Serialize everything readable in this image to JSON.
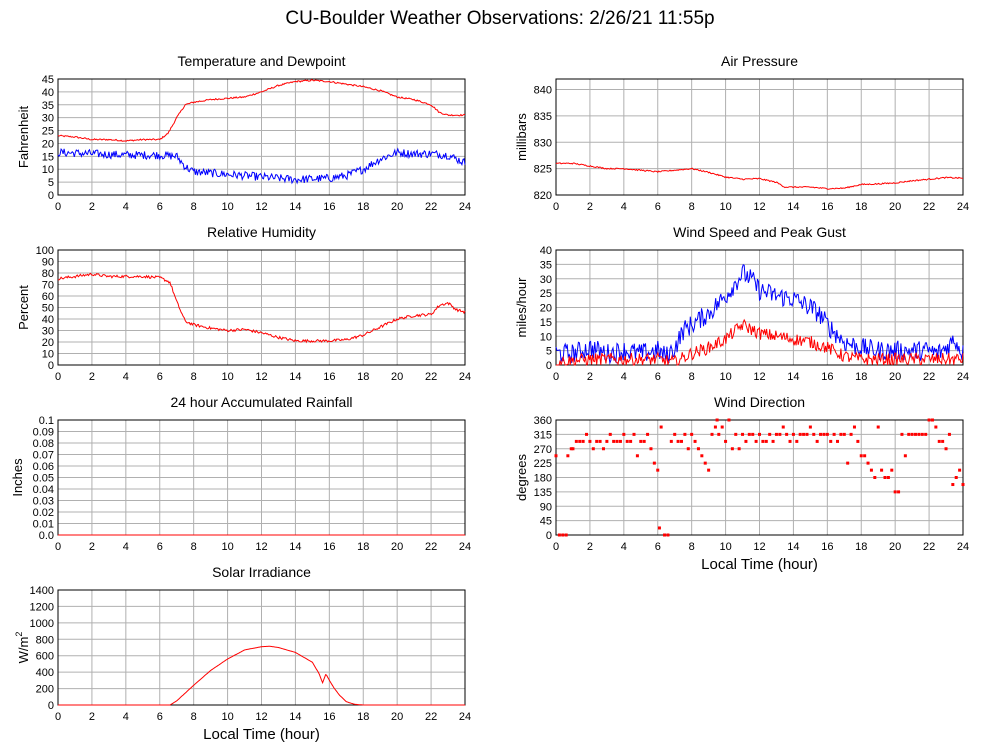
{
  "page": {
    "title": "CU-Boulder Weather Observations: 2/26/21 11:55p"
  },
  "chart_data": [
    {
      "id": "temp",
      "type": "line",
      "title": "Temperature and Dewpoint",
      "xlabel": "",
      "ylabel": "Fahrenheit",
      "xlim": [
        0,
        24
      ],
      "ylim": [
        0,
        45
      ],
      "xticks": [
        0,
        2,
        4,
        6,
        8,
        10,
        12,
        14,
        16,
        18,
        20,
        22,
        24
      ],
      "yticks": [
        0,
        5,
        10,
        15,
        20,
        25,
        30,
        35,
        40,
        45
      ],
      "grid": true,
      "series": [
        {
          "color": "#ff0000",
          "noise": 0.3,
          "x": [
            0,
            1,
            2,
            3,
            4,
            5,
            6,
            6.5,
            7,
            7.5,
            8,
            9,
            10,
            11,
            12,
            13,
            14,
            15,
            16,
            17,
            18,
            19,
            20,
            21,
            22,
            22.5,
            23,
            24
          ],
          "y": [
            23,
            22.5,
            21.5,
            21.5,
            21,
            21.5,
            21.5,
            24,
            30,
            35,
            36,
            37,
            37.5,
            38,
            40,
            42.5,
            44,
            44.5,
            44,
            43,
            42,
            40.5,
            38,
            37,
            35,
            32,
            31,
            31
          ]
        },
        {
          "color": "#0000ff",
          "noise": 1.6,
          "x": [
            0,
            2,
            4,
            6,
            7,
            7.5,
            8,
            10,
            12,
            14,
            16,
            17,
            18,
            19,
            20,
            21,
            22,
            23,
            24
          ],
          "y": [
            16.5,
            16,
            15.5,
            15.5,
            15,
            11,
            9,
            8,
            7,
            6,
            6.5,
            7.5,
            10,
            14,
            16.5,
            16,
            16,
            15.5,
            12.5
          ]
        }
      ]
    },
    {
      "id": "humidity",
      "type": "line",
      "title": "Relative Humidity",
      "xlabel": "",
      "ylabel": "Percent",
      "xlim": [
        0,
        24
      ],
      "ylim": [
        0,
        100
      ],
      "xticks": [
        0,
        2,
        4,
        6,
        8,
        10,
        12,
        14,
        16,
        18,
        20,
        22,
        24
      ],
      "yticks": [
        0,
        10,
        20,
        30,
        40,
        50,
        60,
        70,
        80,
        90,
        100
      ],
      "grid": true,
      "series": [
        {
          "color": "#ff0000",
          "noise": 1.2,
          "x": [
            0,
            1,
            2,
            3,
            4,
            5,
            6,
            6.6,
            7,
            7.5,
            8,
            9,
            10,
            11,
            12,
            13,
            14,
            15,
            16,
            17,
            18,
            19,
            20,
            21,
            22,
            22.5,
            23,
            23.5,
            24
          ],
          "y": [
            75,
            77,
            79,
            77,
            77,
            77,
            76,
            72,
            55,
            38,
            35,
            32,
            30,
            31,
            28,
            24,
            21,
            21,
            21,
            22,
            26,
            33,
            40,
            43,
            44,
            52,
            54,
            48,
            46
          ]
        }
      ]
    },
    {
      "id": "rain",
      "type": "line",
      "title": "24 hour Accumulated Rainfall",
      "xlabel": "",
      "ylabel": "Inches",
      "xlim": [
        0,
        24
      ],
      "ylim": [
        0,
        0.1
      ],
      "xticks": [
        0,
        2,
        4,
        6,
        8,
        10,
        12,
        14,
        16,
        18,
        20,
        22,
        24
      ],
      "yticks": [
        0.0,
        0.01,
        0.02,
        0.03,
        0.04,
        0.05,
        0.06,
        0.07,
        0.08,
        0.09,
        0.1
      ],
      "ytick_labels": [
        "0.0",
        "0.01",
        "0.02",
        "0.03",
        "0.04",
        "0.05",
        "0.06",
        "0.07",
        "0.08",
        "0.09",
        "0.1"
      ],
      "grid": true,
      "series": [
        {
          "color": "#ff0000",
          "noise": 0,
          "x": [
            0,
            24
          ],
          "y": [
            0,
            0
          ]
        }
      ]
    },
    {
      "id": "solar",
      "type": "line",
      "title": "Solar Irradiance",
      "xlabel": "Local Time (hour)",
      "ylabel": "W/m",
      "ylabel_sup": "2",
      "xlim": [
        0,
        24
      ],
      "ylim": [
        0,
        1400
      ],
      "xticks": [
        0,
        2,
        4,
        6,
        8,
        10,
        12,
        14,
        16,
        18,
        20,
        22,
        24
      ],
      "yticks": [
        0,
        200,
        400,
        600,
        800,
        1000,
        1200,
        1400
      ],
      "grid": true,
      "series": [
        {
          "color": "#ff0000",
          "noise": 0,
          "x": [
            0,
            6.6,
            7,
            8,
            9,
            10,
            11,
            12,
            12.5,
            13,
            14,
            15,
            15.4,
            15.6,
            15.8,
            16,
            16.3,
            16.6,
            17,
            17.5,
            18,
            24
          ],
          "y": [
            0,
            0,
            50,
            240,
            420,
            560,
            670,
            710,
            715,
            700,
            640,
            520,
            380,
            270,
            380,
            300,
            200,
            120,
            40,
            8,
            0,
            0
          ]
        }
      ]
    },
    {
      "id": "pressure",
      "type": "line",
      "title": "Air Pressure",
      "xlabel": "",
      "ylabel": "millibars",
      "xlim": [
        0,
        24
      ],
      "ylim": [
        820,
        842
      ],
      "xticks": [
        0,
        2,
        4,
        6,
        8,
        10,
        12,
        14,
        16,
        18,
        20,
        22,
        24
      ],
      "yticks": [
        820,
        825,
        830,
        835,
        840
      ],
      "grid": true,
      "series": [
        {
          "color": "#ff0000",
          "noise": 0.12,
          "x": [
            0,
            1,
            2,
            3,
            4,
            5,
            6,
            7,
            8,
            9,
            10,
            11,
            12,
            13,
            13.5,
            14,
            15,
            16,
            17,
            18,
            19,
            20,
            21,
            22,
            23,
            24
          ],
          "y": [
            826,
            826,
            825.5,
            825,
            825,
            824.7,
            824.4,
            824.7,
            825,
            824.3,
            823.4,
            823,
            823.1,
            822.4,
            821.5,
            821.5,
            821.5,
            821.2,
            821.3,
            822,
            822.1,
            822.3,
            822.7,
            823,
            823.3,
            823.2
          ]
        }
      ]
    },
    {
      "id": "wind",
      "type": "line",
      "title": "Wind Speed and Peak Gust",
      "xlabel": "",
      "ylabel": "miles/hour",
      "xlim": [
        0,
        24
      ],
      "ylim": [
        0,
        40
      ],
      "xticks": [
        0,
        2,
        4,
        6,
        8,
        10,
        12,
        14,
        16,
        18,
        20,
        22,
        24
      ],
      "yticks": [
        0,
        5,
        10,
        15,
        20,
        25,
        30,
        35,
        40
      ],
      "grid": true,
      "series": [
        {
          "color": "#0000ff",
          "noise": 3.5,
          "x": [
            0,
            1,
            2,
            3,
            4,
            5,
            6,
            6.5,
            7,
            7.5,
            8,
            9,
            10,
            10.5,
            11,
            11.5,
            12,
            13,
            14,
            15,
            15.5,
            16,
            17,
            18,
            19,
            20,
            21,
            22,
            22.5,
            23,
            23.5,
            24
          ],
          "y": [
            4,
            4,
            6,
            4,
            5,
            4,
            5,
            3,
            6,
            12,
            14,
            18,
            24,
            28,
            32,
            30,
            26,
            24,
            23,
            20,
            18,
            14,
            8,
            6,
            5,
            5,
            5,
            5,
            4,
            6,
            9,
            4
          ]
        },
        {
          "color": "#ff0000",
          "noise": 2.2,
          "x": [
            0,
            2,
            4,
            6,
            7,
            8,
            9,
            10,
            11,
            12,
            13,
            14,
            15,
            16,
            17,
            18,
            20,
            22,
            23,
            24
          ],
          "y": [
            1,
            2,
            2,
            2,
            1,
            4,
            6,
            9,
            14,
            11,
            10,
            9,
            8,
            6,
            3,
            2,
            2,
            2,
            2,
            2
          ]
        }
      ]
    },
    {
      "id": "winddir",
      "type": "scatter",
      "title": "Wind Direction",
      "xlabel": "Local Time (hour)",
      "ylabel": "degrees",
      "xlim": [
        0,
        24
      ],
      "ylim": [
        0,
        360
      ],
      "xticks": [
        0,
        2,
        4,
        6,
        8,
        10,
        12,
        14,
        16,
        18,
        20,
        22,
        24
      ],
      "yticks": [
        0,
        45,
        90,
        135,
        180,
        225,
        270,
        315,
        360
      ],
      "grid": true,
      "series": [
        {
          "color": "#ff0000",
          "points": [
            [
              0,
              248
            ],
            [
              0.2,
              0
            ],
            [
              0.4,
              0
            ],
            [
              0.6,
              0
            ],
            [
              0.7,
              248
            ],
            [
              0.9,
              270
            ],
            [
              1.0,
              270
            ],
            [
              1.2,
              293
            ],
            [
              1.4,
              293
            ],
            [
              1.6,
              293
            ],
            [
              1.8,
              315
            ],
            [
              2.0,
              293
            ],
            [
              2.2,
              270
            ],
            [
              2.4,
              293
            ],
            [
              2.6,
              293
            ],
            [
              2.8,
              270
            ],
            [
              3.0,
              293
            ],
            [
              3.2,
              315
            ],
            [
              3.4,
              293
            ],
            [
              3.6,
              293
            ],
            [
              3.8,
              293
            ],
            [
              4.0,
              315
            ],
            [
              4.2,
              293
            ],
            [
              4.4,
              293
            ],
            [
              4.6,
              315
            ],
            [
              4.8,
              248
            ],
            [
              5.0,
              293
            ],
            [
              5.2,
              293
            ],
            [
              5.4,
              315
            ],
            [
              5.6,
              270
            ],
            [
              5.8,
              225
            ],
            [
              6.0,
              203
            ],
            [
              6.1,
              22
            ],
            [
              6.2,
              338
            ],
            [
              6.4,
              0
            ],
            [
              6.6,
              0
            ],
            [
              6.8,
              293
            ],
            [
              7.0,
              315
            ],
            [
              7.2,
              293
            ],
            [
              7.4,
              293
            ],
            [
              7.6,
              315
            ],
            [
              7.8,
              270
            ],
            [
              8.0,
              315
            ],
            [
              8.2,
              293
            ],
            [
              8.4,
              270
            ],
            [
              8.6,
              248
            ],
            [
              8.8,
              225
            ],
            [
              9.0,
              203
            ],
            [
              9.2,
              315
            ],
            [
              9.4,
              338
            ],
            [
              9.5,
              360
            ],
            [
              9.6,
              315
            ],
            [
              9.8,
              338
            ],
            [
              10.0,
              293
            ],
            [
              10.2,
              360
            ],
            [
              10.4,
              270
            ],
            [
              10.6,
              315
            ],
            [
              10.8,
              270
            ],
            [
              11.0,
              315
            ],
            [
              11.2,
              293
            ],
            [
              11.4,
              315
            ],
            [
              11.6,
              315
            ],
            [
              11.8,
              293
            ],
            [
              12.0,
              315
            ],
            [
              12.2,
              293
            ],
            [
              12.4,
              293
            ],
            [
              12.6,
              315
            ],
            [
              12.8,
              293
            ],
            [
              13.0,
              315
            ],
            [
              13.2,
              315
            ],
            [
              13.4,
              338
            ],
            [
              13.6,
              315
            ],
            [
              13.8,
              293
            ],
            [
              14.0,
              315
            ],
            [
              14.2,
              293
            ],
            [
              14.4,
              315
            ],
            [
              14.6,
              315
            ],
            [
              14.8,
              315
            ],
            [
              15.0,
              338
            ],
            [
              15.2,
              315
            ],
            [
              15.4,
              293
            ],
            [
              15.6,
              315
            ],
            [
              15.8,
              315
            ],
            [
              16.0,
              315
            ],
            [
              16.2,
              293
            ],
            [
              16.4,
              315
            ],
            [
              16.6,
              293
            ],
            [
              16.8,
              315
            ],
            [
              17.0,
              315
            ],
            [
              17.2,
              225
            ],
            [
              17.4,
              315
            ],
            [
              17.6,
              338
            ],
            [
              17.8,
              293
            ],
            [
              18.0,
              248
            ],
            [
              18.2,
              248
            ],
            [
              18.4,
              225
            ],
            [
              18.6,
              203
            ],
            [
              18.8,
              180
            ],
            [
              19.0,
              338
            ],
            [
              19.2,
              203
            ],
            [
              19.4,
              180
            ],
            [
              19.6,
              180
            ],
            [
              19.8,
              203
            ],
            [
              20.0,
              135
            ],
            [
              20.2,
              135
            ],
            [
              20.4,
              315
            ],
            [
              20.6,
              248
            ],
            [
              20.8,
              315
            ],
            [
              21.0,
              315
            ],
            [
              21.2,
              315
            ],
            [
              21.4,
              315
            ],
            [
              21.6,
              315
            ],
            [
              21.8,
              315
            ],
            [
              22.0,
              360
            ],
            [
              22.2,
              360
            ],
            [
              22.4,
              338
            ],
            [
              22.6,
              293
            ],
            [
              22.8,
              293
            ],
            [
              23.0,
              270
            ],
            [
              23.2,
              315
            ],
            [
              23.4,
              158
            ],
            [
              23.6,
              180
            ],
            [
              23.8,
              203
            ],
            [
              24.0,
              158
            ]
          ]
        }
      ]
    }
  ]
}
